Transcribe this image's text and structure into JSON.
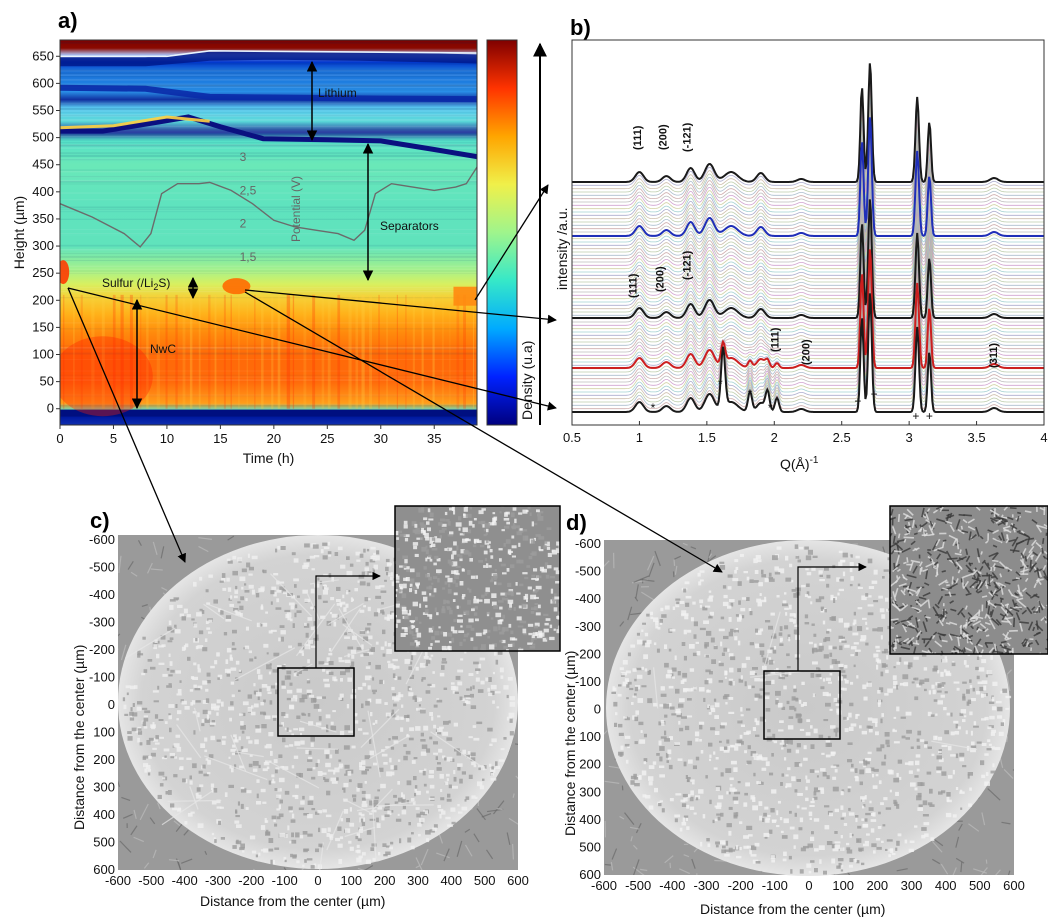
{
  "panels": {
    "a": {
      "label": "a)"
    },
    "b": {
      "label": "b)"
    },
    "c": {
      "label": "c)"
    },
    "d": {
      "label": "d)"
    }
  },
  "chart_data": [
    {
      "id": "a",
      "type": "heatmap",
      "xlabel": "Time (h)",
      "ylabel": "Height (µm)",
      "colorbar_label": "Density (u.a)",
      "xlim": [
        0,
        39
      ],
      "ylim": [
        -30,
        680
      ],
      "xticks": [
        "0",
        "5",
        "10",
        "15",
        "20",
        "25",
        "30",
        "35"
      ],
      "yticks": [
        "650",
        "600",
        "550",
        "500",
        "450",
        "400",
        "350",
        "300",
        "250",
        "200",
        "150",
        "100",
        "50",
        "0"
      ],
      "layers": [
        {
          "name": "Lithium",
          "from": 500,
          "to": 650
        },
        {
          "name": "Separators",
          "from": 235,
          "to": 500
        },
        {
          "name": "Sulfur (/Li2S)",
          "from": 200,
          "to": 255
        },
        {
          "name": "NwC",
          "from": 0,
          "to": 200
        }
      ],
      "annotations": {
        "lithium": "Lithium",
        "separators": "Separators",
        "sulfur_prefix": "Sulfur (/Li",
        "sulfur_sub": "2",
        "sulfur_suffix": "S)",
        "nwc": "NwC",
        "potential_axis": "Potential (V)",
        "potential_ticks": [
          "3",
          "2,5",
          "2",
          "1,5"
        ]
      },
      "potential_curve": {
        "time_h": [
          0,
          3,
          6,
          7.5,
          8.5,
          9.5,
          11,
          13,
          14,
          16,
          18,
          20,
          22,
          24,
          26,
          27.5,
          28.5,
          29.5,
          31,
          33,
          35,
          37,
          38,
          39
        ],
        "potential_V": [
          2.3,
          2.1,
          1.85,
          1.65,
          1.85,
          2.45,
          2.6,
          2.6,
          2.62,
          2.5,
          2.3,
          2.05,
          1.95,
          1.9,
          1.85,
          1.75,
          1.9,
          2.45,
          2.6,
          2.55,
          2.5,
          2.55,
          2.6,
          2.85
        ]
      },
      "colorscale": [
        "#00007f",
        "#0022ff",
        "#00aaff",
        "#36e8c8",
        "#9ff58c",
        "#f0f04a",
        "#ffa500",
        "#ff3300",
        "#7f0000"
      ]
    },
    {
      "id": "b",
      "type": "line",
      "xlabel": "Q(Å)",
      "xlabel_sup": "-1",
      "ylabel": "intensity /a.u.",
      "xlim": [
        0.5,
        4
      ],
      "xticks": [
        "0.5",
        "1",
        "1.5",
        "2",
        "2.5",
        "3",
        "3.5",
        "4"
      ],
      "highlighted_series": [
        {
          "color": "#1a1a1a",
          "role": "top"
        },
        {
          "color": "#1f2fb8",
          "role": "upper"
        },
        {
          "color": "#1a1a1a",
          "role": "middle"
        },
        {
          "color": "#cc1f1f",
          "role": "lower"
        },
        {
          "color": "#1a1a1a",
          "role": "bottom"
        }
      ],
      "peak_labels_top": [
        "(111)",
        "(200)",
        "(-121)"
      ],
      "peak_labels_mid": [
        "(111)",
        "(200)",
        "(-121)"
      ],
      "peak_labels_bottom": [
        "(111)",
        "(200)",
        "(311)"
      ],
      "markers": {
        "star": "*",
        "plus": "+"
      }
    },
    {
      "id": "c",
      "type": "image",
      "xlabel": "Distance from the center (µm)",
      "ylabel": "Distance from the center (µm)",
      "xticks": [
        "-600",
        "-500",
        "-400",
        "-300",
        "-200",
        "-100",
        "0",
        "100",
        "200",
        "300",
        "400",
        "500",
        "600"
      ],
      "yticks": [
        "-600",
        "-500",
        "-400",
        "-300",
        "-200",
        "-100",
        "0",
        "100",
        "200",
        "300",
        "400",
        "500",
        "600"
      ]
    },
    {
      "id": "d",
      "type": "image",
      "xlabel": "Distance from the center (µm)",
      "ylabel": "Distance from the center (µm)",
      "xticks": [
        "-600",
        "-500",
        "-400",
        "-300",
        "-200",
        "-100",
        "0",
        "100",
        "200",
        "300",
        "400",
        "500",
        "600"
      ],
      "yticks": [
        "-600",
        "-500",
        "-400",
        "-300",
        "-200",
        "-100",
        "0",
        "100",
        "200",
        "300",
        "400",
        "500",
        "600"
      ]
    }
  ]
}
